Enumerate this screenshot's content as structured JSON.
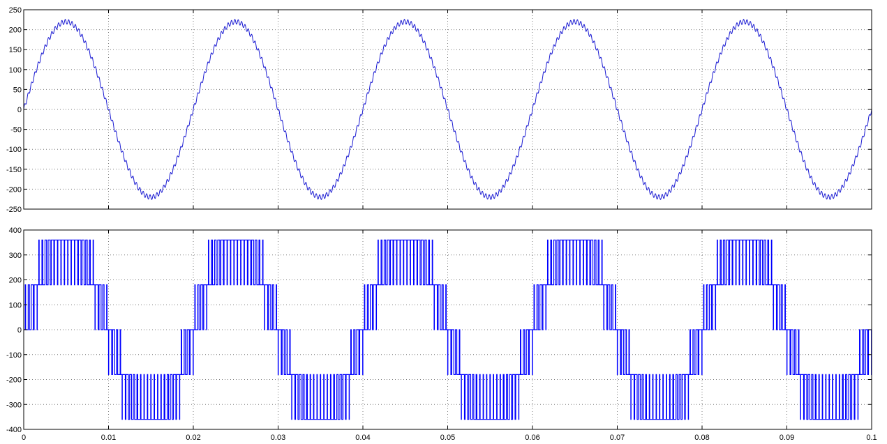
{
  "chart_data": [
    {
      "type": "line",
      "title": "",
      "xlabel": "",
      "ylabel": "",
      "xlim": [
        0,
        0.1
      ],
      "ylim": [
        -250,
        250
      ],
      "grid": true,
      "x_ticks": [
        "0",
        "0.01",
        "0.02",
        "0.03",
        "0.04",
        "0.05",
        "0.06",
        "0.07",
        "0.08",
        "0.09",
        "0.1"
      ],
      "x_tick_labels_visible": false,
      "y_ticks": [
        "-250",
        "-200",
        "-150",
        "-100",
        "-50",
        "0",
        "50",
        "100",
        "150",
        "200",
        "250"
      ],
      "series": [
        {
          "amplitude": 220,
          "frequency_hz": 50,
          "phase_deg": 0,
          "ripple_amplitude": 6,
          "color": "#1a1ad2"
        }
      ]
    },
    {
      "type": "line",
      "title": "",
      "xlabel": "",
      "ylabel": "",
      "xlim": [
        0,
        0.1
      ],
      "ylim": [
        -400,
        400
      ],
      "grid": true,
      "x_ticks": [
        "0",
        "0.01",
        "0.02",
        "0.03",
        "0.04",
        "0.05",
        "0.06",
        "0.07",
        "0.08",
        "0.09",
        "0.1"
      ],
      "x_tick_labels_visible": true,
      "y_ticks": [
        "-400",
        "-300",
        "-200",
        "-100",
        "0",
        "100",
        "200",
        "300",
        "400"
      ],
      "series": [
        {
          "levels": [
            -360,
            -180,
            0,
            180,
            360
          ],
          "fundamental_frequency_hz": 50,
          "switching_period_s": 0.0004,
          "color": "#0000ff"
        }
      ]
    }
  ]
}
